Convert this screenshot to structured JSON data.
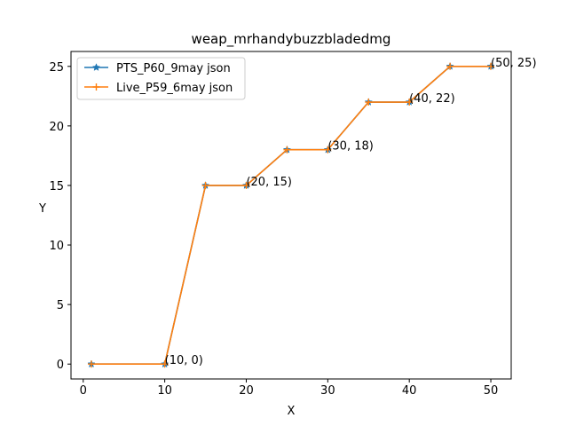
{
  "chart_data": {
    "type": "line",
    "title": "weap_mrhandybuzzbladedmg",
    "xlabel": "X",
    "ylabel": "Y",
    "xlim": [
      -1.5,
      52.5
    ],
    "ylim": [
      -1.25,
      26.25
    ],
    "xticks": [
      0,
      10,
      20,
      30,
      40,
      50
    ],
    "yticks": [
      0,
      5,
      10,
      15,
      20,
      25
    ],
    "grid": false,
    "legend_position": "top-left",
    "x": [
      1,
      10,
      15,
      20,
      25,
      30,
      35,
      40,
      45,
      50
    ],
    "series": [
      {
        "name": "PTS_P60_9may json",
        "color": "#1f77b4",
        "marker": "star",
        "values": [
          0,
          0,
          15,
          15,
          18,
          18,
          22,
          22,
          25,
          25
        ]
      },
      {
        "name": "Live_P59_6may json",
        "color": "#ff7f0e",
        "marker": "plus",
        "values": [
          0,
          0,
          15,
          15,
          18,
          18,
          22,
          22,
          25,
          25
        ]
      }
    ],
    "annotations": [
      {
        "text": "(10, 0)",
        "x": 10,
        "y": 0
      },
      {
        "text": "(20, 15)",
        "x": 20,
        "y": 15
      },
      {
        "text": "(30, 18)",
        "x": 30,
        "y": 18
      },
      {
        "text": "(40, 22)",
        "x": 40,
        "y": 22
      },
      {
        "text": "(50, 25)",
        "x": 50,
        "y": 25
      }
    ]
  }
}
